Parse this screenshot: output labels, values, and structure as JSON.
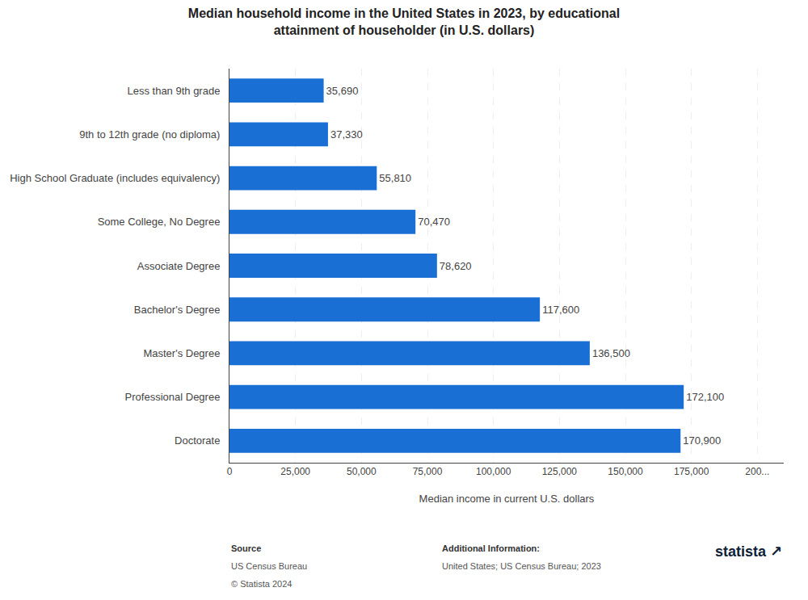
{
  "chart_data": {
    "type": "bar",
    "orientation": "horizontal",
    "title": "Median household income in the United States in 2023, by educational\nattainment of householder (in U.S. dollars)",
    "categories": [
      "Less than 9th grade",
      "9th to 12th grade (no diploma)",
      "High School Graduate (includes equivalency)",
      "Some College, No Degree",
      "Associate Degree",
      "Bachelor's Degree",
      "Master's Degree",
      "Professional Degree",
      "Doctorate"
    ],
    "values": [
      35690,
      37330,
      55810,
      70470,
      78620,
      117600,
      136500,
      172100,
      170900
    ],
    "value_labels": [
      "35,690",
      "37,330",
      "55,810",
      "70,470",
      "78,620",
      "117,600",
      "136,500",
      "172,100",
      "170,900"
    ],
    "data_labels": true,
    "color": "#1a6fd4",
    "xlabel": "Median income in current U.S. dollars",
    "xlim": [
      0,
      210000
    ],
    "xticks": [
      0,
      {
        "value": 25000,
        "label": "25,000"
      },
      {
        "value": 50000,
        "label": "50,000"
      },
      {
        "value": 75000,
        "label": "75,000"
      },
      {
        "value": 100000,
        "label": "100,000"
      },
      {
        "value": 125000,
        "label": "125,000"
      },
      {
        "value": 150000,
        "label": "150,000"
      },
      {
        "value": 175000,
        "label": "175,000"
      },
      {
        "value": 200000,
        "label": "200..."
      }
    ],
    "grid": true,
    "annotations": [
      [
        "Source",
        "US Census Bureau",
        "© Statista 2024"
      ],
      [
        "Additional Information:",
        "United States; US Census Bureau; 2023"
      ],
      [
        "statista",
        "↗"
      ]
    ]
  }
}
